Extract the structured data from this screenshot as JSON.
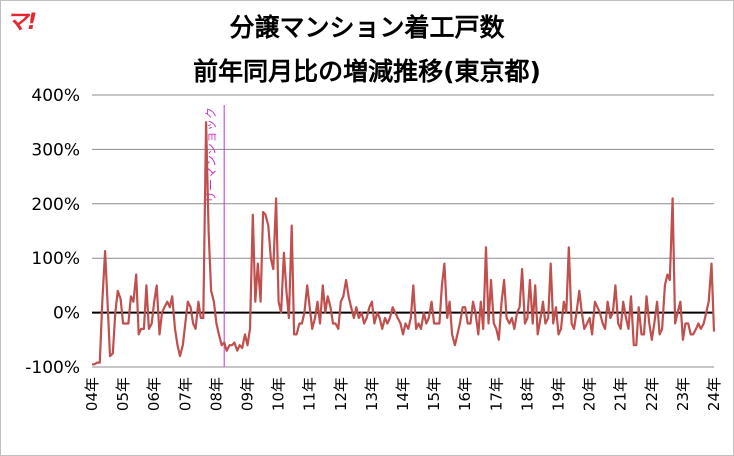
{
  "logo": {
    "text": "マ!"
  },
  "chart_data": {
    "type": "line",
    "title": "分譲マンション着工戸数",
    "subtitle": "前年同月比の増減推移(東京都)",
    "xlabel": "",
    "ylabel": "",
    "ylim": [
      -100,
      400
    ],
    "y_ticks": [
      -100,
      0,
      100,
      200,
      300,
      400
    ],
    "y_tick_labels": [
      "-100%",
      "0%",
      "100%",
      "200%",
      "300%",
      "400%"
    ],
    "x_tick_labels": [
      "04年",
      "05年",
      "06年",
      "07年",
      "08年",
      "09年",
      "10年",
      "11年",
      "12年",
      "13年",
      "14年",
      "15年",
      "16年",
      "17年",
      "18年",
      "19年",
      "20年",
      "21年",
      "22年",
      "23年",
      "24年"
    ],
    "grid": true,
    "legend": "none",
    "series_color": "#c0504d",
    "annotation": {
      "text": "リーマンショック",
      "x": 2008.25,
      "color": "#cc33cc"
    },
    "series": [
      {
        "x": [
          2004.0,
          2004.08,
          2004.17,
          2004.25,
          2004.33,
          2004.42,
          2004.5,
          2004.58,
          2004.67,
          2004.75,
          2004.83,
          2004.92,
          2005.0,
          2005.08,
          2005.17,
          2005.25,
          2005.33,
          2005.42,
          2005.5,
          2005.58,
          2005.67,
          2005.75,
          2005.83,
          2005.92,
          2006.0,
          2006.08,
          2006.17,
          2006.25,
          2006.33,
          2006.42,
          2006.5,
          2006.58,
          2006.67,
          2006.75,
          2006.83,
          2006.92,
          2007.0,
          2007.08,
          2007.17,
          2007.25,
          2007.33,
          2007.42,
          2007.5,
          2007.58,
          2007.67,
          2007.75,
          2007.83,
          2007.92,
          2008.0,
          2008.08,
          2008.17,
          2008.25,
          2008.33,
          2008.42,
          2008.5,
          2008.58,
          2008.67,
          2008.75,
          2008.83,
          2008.92,
          2009.0,
          2009.08,
          2009.17,
          2009.25,
          2009.33,
          2009.42,
          2009.5,
          2009.58,
          2009.67,
          2009.75,
          2009.83,
          2009.92,
          2010.0,
          2010.08,
          2010.17,
          2010.25,
          2010.33,
          2010.42,
          2010.5,
          2010.58,
          2010.67,
          2010.75,
          2010.83,
          2010.92,
          2011.0,
          2011.08,
          2011.17,
          2011.25,
          2011.33,
          2011.42,
          2011.5,
          2011.58,
          2011.67,
          2011.75,
          2011.83,
          2011.92,
          2012.0,
          2012.08,
          2012.17,
          2012.25,
          2012.33,
          2012.42,
          2012.5,
          2012.58,
          2012.67,
          2012.75,
          2012.83,
          2012.92,
          2013.0,
          2013.08,
          2013.17,
          2013.25,
          2013.33,
          2013.42,
          2013.5,
          2013.58,
          2013.67,
          2013.75,
          2013.83,
          2013.92,
          2014.0,
          2014.08,
          2014.17,
          2014.25,
          2014.33,
          2014.42,
          2014.5,
          2014.58,
          2014.67,
          2014.75,
          2014.83,
          2014.92,
          2015.0,
          2015.08,
          2015.17,
          2015.25,
          2015.33,
          2015.42,
          2015.5,
          2015.58,
          2015.67,
          2015.75,
          2015.83,
          2015.92,
          2016.0,
          2016.08,
          2016.17,
          2016.25,
          2016.33,
          2016.42,
          2016.5,
          2016.58,
          2016.67,
          2016.75,
          2016.83,
          2016.92,
          2017.0,
          2017.08,
          2017.17,
          2017.25,
          2017.33,
          2017.42,
          2017.5,
          2017.58,
          2017.67,
          2017.75,
          2017.83,
          2017.92,
          2018.0,
          2018.08,
          2018.17,
          2018.25,
          2018.33,
          2018.42,
          2018.5,
          2018.58,
          2018.67,
          2018.75,
          2018.83,
          2018.92,
          2019.0,
          2019.08,
          2019.17,
          2019.25,
          2019.33,
          2019.42,
          2019.5,
          2019.58,
          2019.67,
          2019.75,
          2019.83,
          2019.92,
          2020.0,
          2020.08,
          2020.17,
          2020.25,
          2020.33,
          2020.42,
          2020.5,
          2020.58,
          2020.67,
          2020.75,
          2020.83,
          2020.92,
          2021.0,
          2021.08,
          2021.17,
          2021.25,
          2021.33,
          2021.42,
          2021.5,
          2021.58,
          2021.67,
          2021.75,
          2021.83,
          2021.92,
          2022.0,
          2022.08,
          2022.17,
          2022.25,
          2022.33,
          2022.42,
          2022.5,
          2022.58,
          2022.67,
          2022.75,
          2022.83,
          2022.92,
          2023.0,
          2023.08,
          2023.17,
          2023.25,
          2023.33,
          2023.42,
          2023.5,
          2023.58,
          2023.67,
          2023.75,
          2023.83,
          2023.92,
          2024.0
        ],
        "y": [
          -95,
          -95,
          -92,
          -92,
          20,
          113,
          20,
          -80,
          -75,
          0,
          40,
          25,
          -20,
          -20,
          -20,
          30,
          20,
          70,
          -40,
          -30,
          -30,
          50,
          -30,
          -20,
          20,
          50,
          -40,
          0,
          10,
          20,
          10,
          30,
          -30,
          -60,
          -80,
          -60,
          -20,
          20,
          10,
          -20,
          -30,
          20,
          -10,
          -10,
          350,
          150,
          40,
          20,
          -20,
          -40,
          -60,
          -55,
          -70,
          -60,
          -60,
          -55,
          -70,
          -60,
          -65,
          -40,
          -60,
          -30,
          180,
          20,
          90,
          20,
          185,
          180,
          160,
          100,
          80,
          210,
          20,
          0,
          110,
          40,
          -10,
          160,
          -40,
          -40,
          -20,
          -20,
          0,
          50,
          10,
          -30,
          -10,
          20,
          -20,
          50,
          0,
          30,
          10,
          -20,
          -20,
          -30,
          20,
          30,
          60,
          30,
          10,
          -10,
          10,
          -10,
          0,
          -20,
          -10,
          10,
          20,
          -20,
          0,
          -10,
          -30,
          -10,
          -20,
          -10,
          10,
          0,
          -10,
          -20,
          -40,
          -20,
          -30,
          -10,
          50,
          -30,
          -20,
          -30,
          0,
          -20,
          -10,
          20,
          -20,
          -20,
          -20,
          50,
          90,
          -10,
          20,
          -40,
          -60,
          -40,
          -20,
          10,
          10,
          -20,
          -20,
          20,
          0,
          -40,
          20,
          -30,
          120,
          -20,
          60,
          -20,
          -30,
          -50,
          20,
          60,
          -10,
          -20,
          -10,
          -30,
          0,
          10,
          80,
          -20,
          -10,
          60,
          -20,
          50,
          -40,
          -10,
          20,
          -20,
          -10,
          90,
          -20,
          10,
          -40,
          -30,
          20,
          0,
          120,
          -20,
          -30,
          0,
          40,
          0,
          -30,
          -20,
          -10,
          -40,
          20,
          10,
          0,
          -20,
          -30,
          20,
          -10,
          0,
          50,
          -20,
          -30,
          20,
          -10,
          -30,
          30,
          -60,
          -60,
          10,
          -40,
          -40,
          30,
          -20,
          -50,
          -20,
          20,
          -40,
          -30,
          50,
          70,
          60,
          210,
          -20,
          0,
          20,
          -50,
          -20,
          -20,
          -40,
          -40,
          -30,
          -20,
          -30,
          -20,
          0,
          20,
          90,
          -35
        ]
      }
    ]
  }
}
